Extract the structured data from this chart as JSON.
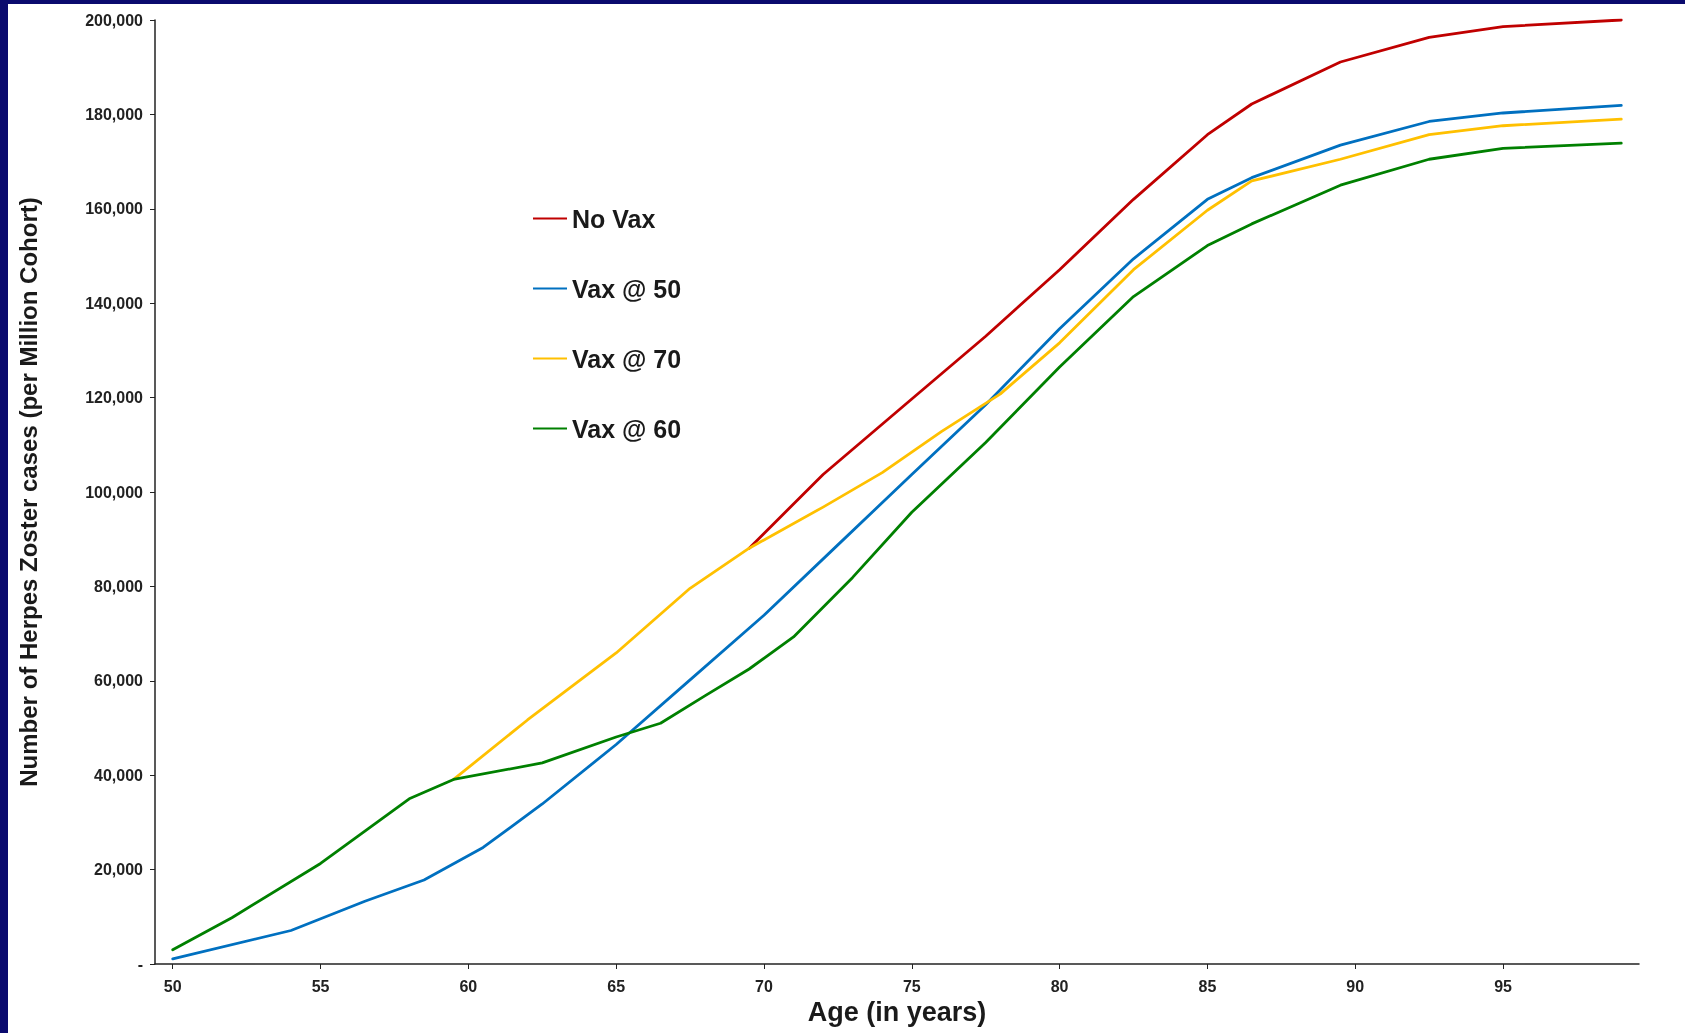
{
  "chart_data": {
    "type": "line",
    "xlabel": "Age (in years)",
    "ylabel": "Number of Herpes Zoster cases (per Million Cohort)",
    "xlim": [
      49.4,
      99.6
    ],
    "xticks": [
      50,
      55,
      60,
      65,
      70,
      75,
      80,
      85,
      90,
      95
    ],
    "ylim": [
      0,
      200000
    ],
    "yticks": [
      {
        "value": 0,
        "label": "-"
      },
      {
        "value": 20000,
        "label": "20,000"
      },
      {
        "value": 40000,
        "label": "40,000"
      },
      {
        "value": 60000,
        "label": "60,000"
      },
      {
        "value": 80000,
        "label": "80,000"
      },
      {
        "value": 100000,
        "label": "100,000"
      },
      {
        "value": 120000,
        "label": "120,000"
      },
      {
        "value": 140000,
        "label": "140,000"
      },
      {
        "value": 160000,
        "label": "160,000"
      },
      {
        "value": 180000,
        "label": "180,000"
      },
      {
        "value": 200000,
        "label": "200,000"
      }
    ],
    "grid": false,
    "legend": "top left",
    "marker": "none",
    "line_style": "solid",
    "series": [
      {
        "name": "No Vax",
        "color": "#c00000",
        "x": [
          69.5,
          72,
          75,
          77.5,
          80,
          82.5,
          85,
          86.5,
          89.5,
          92.5,
          95,
          99
        ],
        "values": [
          88100,
          103700,
          119700,
          133000,
          147100,
          162000,
          175700,
          182200,
          191100,
          196300,
          198600,
          200000
        ]
      },
      {
        "name": "Vax @ 50",
        "color": "#0070c0",
        "x": [
          50,
          54,
          56.5,
          58.5,
          60.5,
          62.5,
          65,
          67.5,
          70,
          72.5,
          75,
          77.5,
          80,
          82.5,
          85,
          86.5,
          89.5,
          92.5,
          95,
          99
        ],
        "values": [
          1100,
          7100,
          13300,
          17800,
          24700,
          33900,
          46500,
          60200,
          73900,
          88800,
          103700,
          118500,
          134600,
          149400,
          162000,
          166600,
          173500,
          178500,
          180300,
          181900
        ]
      },
      {
        "name": "Vax @ 70",
        "color": "#ffc000",
        "x": [
          59.5,
          62,
          65,
          67.5,
          69.5,
          72,
          74,
          76,
          78,
          80,
          82.5,
          85,
          86.5,
          89.5,
          92.5,
          95,
          99
        ],
        "values": [
          39100,
          51700,
          65900,
          79600,
          88100,
          96800,
          104100,
          112800,
          120800,
          131600,
          147100,
          159700,
          165900,
          170500,
          175700,
          177600,
          179000
        ]
      },
      {
        "name": "Vax @ 60",
        "color": "#008000",
        "x": [
          50,
          52,
          55,
          58,
          59.5,
          62.5,
          65,
          66.5,
          68,
          69.5,
          71,
          73,
          75,
          77.5,
          80,
          82.5,
          85,
          86.5,
          89.5,
          92.5,
          95,
          99
        ],
        "values": [
          3000,
          9800,
          21300,
          35000,
          39100,
          42600,
          48100,
          51000,
          56800,
          62500,
          69300,
          81900,
          95700,
          110500,
          126500,
          141400,
          152200,
          156800,
          165000,
          170500,
          172800,
          173900
        ]
      }
    ]
  }
}
